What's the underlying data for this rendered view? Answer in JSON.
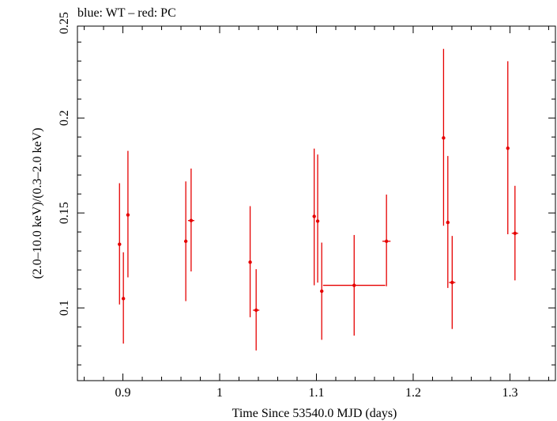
{
  "chart_data": {
    "type": "scatter",
    "title": "blue: WT – red: PC",
    "xlabel": "Time Since 53540.0 MJD (days)",
    "ylabel": "(2.0–10.0 keV)/(0.3–2.0 keV)",
    "xlim": [
      0.853,
      1.347
    ],
    "ylim": [
      0.0617,
      0.2484
    ],
    "x_ticks": [
      {
        "value": 0.9,
        "label": "0.9"
      },
      {
        "value": 1.0,
        "label": "1"
      },
      {
        "value": 1.1,
        "label": "1.1"
      },
      {
        "value": 1.2,
        "label": "1.2"
      },
      {
        "value": 1.3,
        "label": "1.3"
      }
    ],
    "y_ticks": [
      {
        "value": 0.1,
        "label": "0.1"
      },
      {
        "value": 0.15,
        "label": "0.15"
      },
      {
        "value": 0.2,
        "label": "0.2"
      },
      {
        "value": 0.25,
        "label": "0.25"
      }
    ],
    "x_minor_step": 0.02,
    "y_minor_step": 0.01,
    "series": [
      {
        "name": "PC",
        "color": "#e60000",
        "points": [
          {
            "x": 0.8965,
            "xerr": 0.0013,
            "y": 0.1335,
            "ylo": 0.1018,
            "yhi": 0.1657
          },
          {
            "x": 0.9005,
            "xerr": 0.0013,
            "y": 0.1049,
            "ylo": 0.0812,
            "yhi": 0.1293
          },
          {
            "x": 0.9052,
            "xerr": 0.0013,
            "y": 0.149,
            "ylo": 0.1161,
            "yhi": 0.1827
          },
          {
            "x": 0.965,
            "xerr": 0.0013,
            "y": 0.1351,
            "ylo": 0.1036,
            "yhi": 0.1666
          },
          {
            "x": 0.9705,
            "xerr": 0.0033,
            "y": 0.146,
            "ylo": 0.1192,
            "yhi": 0.1734
          },
          {
            "x": 1.0315,
            "xerr": 0.0013,
            "y": 0.1241,
            "ylo": 0.0951,
            "yhi": 0.1536
          },
          {
            "x": 1.0377,
            "xerr": 0.0033,
            "y": 0.0988,
            "ylo": 0.0776,
            "yhi": 0.1204
          },
          {
            "x": 1.0977,
            "xerr": 0.0013,
            "y": 0.1482,
            "ylo": 0.1119,
            "yhi": 0.1839
          },
          {
            "x": 1.1013,
            "xerr": 0.0013,
            "y": 0.1457,
            "ylo": 0.1133,
            "yhi": 0.1808
          },
          {
            "x": 1.1055,
            "xerr": 0.0013,
            "y": 0.1088,
            "ylo": 0.0832,
            "yhi": 0.1344
          },
          {
            "x": 1.139,
            "xerr": 0.0322,
            "y": 0.1119,
            "ylo": 0.0854,
            "yhi": 0.1384
          },
          {
            "x": 1.1724,
            "xerr": 0.0042,
            "y": 0.1351,
            "ylo": 0.1114,
            "yhi": 0.1597
          },
          {
            "x": 1.2314,
            "xerr": 0.0013,
            "y": 0.1895,
            "ylo": 0.1433,
            "yhi": 0.2364
          },
          {
            "x": 1.2358,
            "xerr": 0.0013,
            "y": 0.145,
            "ylo": 0.1105,
            "yhi": 0.18
          },
          {
            "x": 1.2403,
            "xerr": 0.0033,
            "y": 0.1134,
            "ylo": 0.0889,
            "yhi": 0.1379
          },
          {
            "x": 1.2978,
            "xerr": 0.0013,
            "y": 0.1841,
            "ylo": 0.1388,
            "yhi": 0.2299
          },
          {
            "x": 1.3052,
            "xerr": 0.0033,
            "y": 0.1393,
            "ylo": 0.1145,
            "yhi": 0.1643
          }
        ]
      }
    ]
  }
}
